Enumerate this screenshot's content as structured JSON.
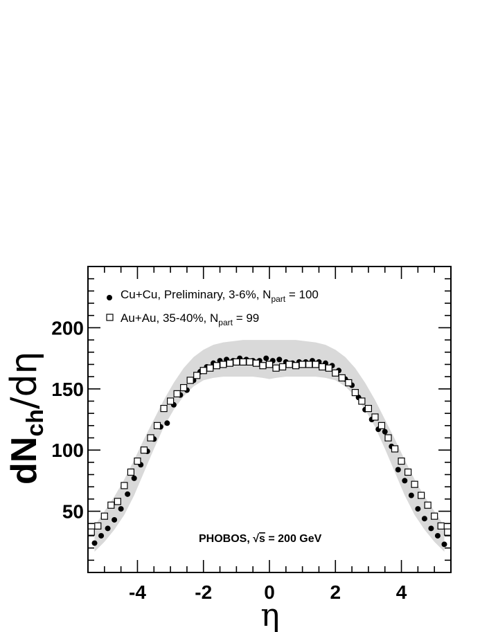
{
  "chart_data": {
    "type": "scatter",
    "title": "",
    "xlabel": "η",
    "ylabel_main": "dN",
    "ylabel_sub": "ch",
    "ylabel_tail": "/dη",
    "xlim": [
      -5.5,
      5.5
    ],
    "ylim": [
      0,
      250
    ],
    "x_ticks": [
      -4,
      -2,
      0,
      2,
      4
    ],
    "x_tick_labels": [
      "-4",
      "-2",
      "0",
      "2",
      "4"
    ],
    "y_ticks": [
      50,
      100,
      150,
      200
    ],
    "y_tick_labels": [
      "50",
      "100",
      "150",
      "200"
    ],
    "grid": false,
    "legend_position": "top-left",
    "annotation": {
      "prefix": "PHOBOS, ",
      "sqrt": "√",
      "s": "s",
      "suffix": " = 200 GeV"
    },
    "band": {
      "color": "#d9d9d9",
      "x": [
        -5.3,
        -5.0,
        -4.7,
        -4.4,
        -4.1,
        -3.8,
        -3.5,
        -3.2,
        -2.9,
        -2.6,
        -2.3,
        -2.0,
        -1.7,
        -1.4,
        -1.1,
        -0.8,
        -0.5,
        -0.2,
        0,
        0.2,
        0.5,
        0.8,
        1.1,
        1.4,
        1.7,
        2.0,
        2.3,
        2.6,
        2.9,
        3.2,
        3.5,
        3.8,
        4.1,
        4.4,
        4.7,
        5.0,
        5.3
      ],
      "upper": [
        38,
        50,
        62,
        76,
        92,
        109,
        125,
        141,
        155,
        167,
        176,
        182,
        186,
        188,
        189,
        190,
        190,
        190,
        190,
        190,
        190,
        190,
        189,
        188,
        186,
        182,
        176,
        167,
        155,
        141,
        125,
        109,
        92,
        76,
        62,
        50,
        38
      ],
      "lower": [
        17,
        25,
        35,
        47,
        63,
        82,
        101,
        119,
        133,
        144,
        152,
        157,
        159,
        160,
        160,
        160,
        160,
        159,
        158,
        159,
        160,
        160,
        160,
        160,
        159,
        157,
        152,
        144,
        133,
        119,
        101,
        82,
        63,
        47,
        35,
        25,
        17
      ]
    },
    "series": [
      {
        "name_prefix": "Cu+Cu, Preliminary, 3-6%, N",
        "name_sub": "part",
        "name_suffix": " = 100",
        "marker": "filled-circle",
        "color": "#000000",
        "x": [
          -5.3,
          -5.1,
          -4.9,
          -4.7,
          -4.5,
          -4.3,
          -4.1,
          -3.9,
          -3.7,
          -3.5,
          -3.3,
          -3.1,
          -2.9,
          -2.7,
          -2.5,
          -2.3,
          -2.1,
          -1.9,
          -1.7,
          -1.5,
          -1.3,
          -1.1,
          -0.9,
          -0.7,
          -0.5,
          -0.3,
          -0.1,
          0.1,
          0.3,
          0.5,
          0.7,
          0.9,
          1.1,
          1.3,
          1.5,
          1.7,
          1.9,
          2.1,
          2.3,
          2.5,
          2.7,
          2.9,
          3.1,
          3.3,
          3.5,
          3.7,
          3.9,
          4.1,
          4.3,
          4.5,
          4.7,
          4.9,
          5.1,
          5.3
        ],
        "y": [
          24,
          30,
          36,
          43,
          52,
          64,
          77,
          88,
          99,
          109,
          119,
          122,
          137,
          145,
          149,
          157,
          164,
          168,
          171,
          173,
          174,
          173,
          175,
          174,
          173,
          173,
          175,
          173,
          174,
          172,
          171,
          172,
          172,
          173,
          172,
          171,
          169,
          165,
          158,
          153,
          143,
          133,
          125,
          117,
          115,
          103,
          84,
          75,
          63,
          52,
          44,
          36,
          30,
          23
        ]
      },
      {
        "name_prefix": "Au+Au, 35-40%, N",
        "name_sub": "part",
        "name_suffix": " = 99",
        "marker": "open-square",
        "color": "#000000",
        "x": [
          -5.4,
          -5.2,
          -5.0,
          -4.8,
          -4.6,
          -4.4,
          -4.2,
          -4.0,
          -3.8,
          -3.6,
          -3.4,
          -3.2,
          -3.0,
          -2.8,
          -2.6,
          -2.4,
          -2.2,
          -2.0,
          -1.8,
          -1.6,
          -1.4,
          -1.2,
          -1.0,
          -0.8,
          -0.6,
          -0.4,
          -0.2,
          0,
          0.2,
          0.4,
          0.6,
          0.8,
          1.0,
          1.2,
          1.4,
          1.6,
          1.8,
          2.0,
          2.2,
          2.4,
          2.6,
          2.8,
          3.0,
          3.2,
          3.4,
          3.6,
          3.8,
          4.0,
          4.2,
          4.4,
          4.6,
          4.8,
          5.0,
          5.2,
          5.4
        ],
        "y": [
          33,
          38,
          46,
          55,
          58,
          71,
          82,
          91,
          100,
          110,
          120,
          134,
          140,
          146,
          151,
          157,
          161,
          165,
          167,
          169,
          170,
          171,
          172,
          172,
          172,
          171,
          169,
          170,
          167,
          168,
          170,
          169,
          170,
          170,
          170,
          168,
          167,
          163,
          159,
          155,
          147,
          140,
          134,
          127,
          120,
          110,
          101,
          91,
          82,
          72,
          63,
          55,
          46,
          38,
          33
        ]
      }
    ]
  }
}
